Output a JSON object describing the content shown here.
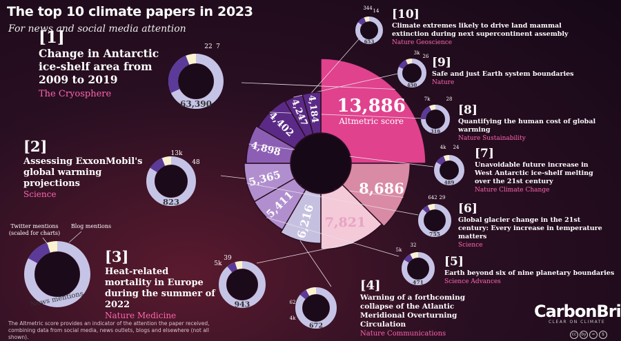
{
  "header": {
    "title": "The top 10 climate papers in 2023",
    "subtitle": "For news and social media attention"
  },
  "center_label": {
    "value": "13,886",
    "caption": "Altmetric score"
  },
  "legend": {
    "twitter": "Twitter mentions\n(scaled for charts)",
    "blog": "Blog mentions",
    "news": "News mentions"
  },
  "footnote": "The Altmetric score provides an indicator of the attention the paper received, combining data from social media, news outlets, blogs and elsewhere (not all shown).",
  "brand": {
    "name": "CarbonBrief",
    "tagline": "CLEAR ON CLIMATE"
  },
  "license_icons": [
    "cc",
    "by",
    "=",
    "$"
  ],
  "colors": {
    "pink_bright": "#e0428e",
    "pink_mid": "#d98aa5",
    "pink_light": "#f4c9d8",
    "lavender": "#c6c0e0",
    "purple_dark": "#5b2a86",
    "purple_mid": "#8d5fb4",
    "purple_light": "#b18fcf",
    "donut_news": "#c6c4e6",
    "donut_twitter": "#5b3a99",
    "donut_blog": "#fbf2d0",
    "label_pink": "#ff66b0"
  },
  "chart_data": {
    "type": "pie",
    "title": "The top 10 climate papers in 2023",
    "value_label": "Altmetric score",
    "papers": [
      {
        "rank": "[1]",
        "title": "Change in Antarctic ice-shelf area from 2009 to 2019",
        "journal": "The Cryosphere",
        "altmetric": 13886,
        "altmetric_text": "13,886",
        "news": 63390,
        "news_text": "63,390",
        "twitter": null,
        "twitter_text": "22",
        "blog": null,
        "blog_text": "7"
      },
      {
        "rank": "[2]",
        "title": "Assessing ExxonMobil's global warming projections",
        "journal": "Science",
        "altmetric": 8686,
        "altmetric_text": "8,686",
        "news": 823,
        "news_text": "823",
        "twitter": 13000,
        "twitter_text": "13k",
        "blog": 48,
        "blog_text": "48"
      },
      {
        "rank": "[3]",
        "title": "Heat-related mortality in Europe during the summer of 2022",
        "journal": "Nature Medicine",
        "altmetric": 7821,
        "altmetric_text": "7,821",
        "news": 943,
        "news_text": "943",
        "twitter": 5000,
        "twitter_text": "5k",
        "blog": 39,
        "blog_text": "39"
      },
      {
        "rank": "[4]",
        "title": "Warning of a forthcoming collapse of the Atlantic Meridional Overturning Circulation",
        "journal": "Nature Communications",
        "altmetric": 6216,
        "altmetric_text": "6,216",
        "news": 672,
        "news_text": "672",
        "twitter": 4000,
        "twitter_text": "4k",
        "blog": 62,
        "blog_text": "62"
      },
      {
        "rank": "[5]",
        "title": "Earth beyond six of nine planetary boundaries",
        "journal": "Science Advances",
        "altmetric": 5411,
        "altmetric_text": "5,411",
        "news": 471,
        "news_text": "471",
        "twitter": 5000,
        "twitter_text": "5k",
        "blog": 32,
        "blog_text": "32"
      },
      {
        "rank": "[6]",
        "title": "Global glacier change in the 21st century: Every increase in temperature matters",
        "journal": "Science",
        "altmetric": 5365,
        "altmetric_text": "5,365",
        "news": 755,
        "news_text": "755",
        "twitter": 642,
        "twitter_text": "642",
        "blog": 29,
        "blog_text": "29"
      },
      {
        "rank": "[7]",
        "title": "Unavoidable future increase in West Antarctic ice-shelf melting over the 21st century",
        "journal": "Nature Climate Change",
        "altmetric": 4898,
        "altmetric_text": "4,898",
        "news": 489,
        "news_text": "489",
        "twitter": 4000,
        "twitter_text": "4k",
        "blog": 24,
        "blog_text": "24"
      },
      {
        "rank": "[8]",
        "title": "Quantifying the human cost of global warming",
        "journal": "Nature Sustainability",
        "altmetric": 4402,
        "altmetric_text": "4,402",
        "news": 316,
        "news_text": "316",
        "twitter": 7000,
        "twitter_text": "7k",
        "blog": 28,
        "blog_text": "28"
      },
      {
        "rank": "[9]",
        "title": "Safe and just Earth system boundaries",
        "journal": "Nature",
        "altmetric": 4247,
        "altmetric_text": "4,247",
        "news": 450,
        "news_text": "450",
        "twitter": 3000,
        "twitter_text": "3k",
        "blog": 26,
        "blog_text": "26"
      },
      {
        "rank": "[10]",
        "title": "Climate extremes likely to drive land mammal extinction during next supercontinent assembly",
        "journal": "Nature Geoscience",
        "altmetric": 4184,
        "altmetric_text": "4,184",
        "news": 653,
        "news_text": "653",
        "twitter": 344,
        "twitter_text": "344",
        "blog": 14,
        "blog_text": "14"
      }
    ]
  }
}
